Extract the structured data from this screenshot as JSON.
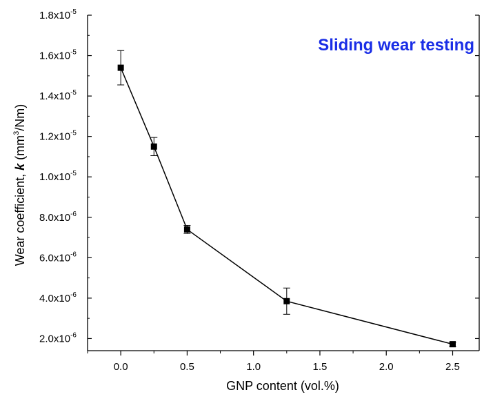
{
  "chart_data": {
    "type": "line",
    "annotation": "Sliding wear testing",
    "xlabel": "GNP content (vol.%)",
    "ylabel_parts": [
      "Wear coefficient, ",
      "k",
      " (mm",
      "3",
      "/Nm)"
    ],
    "xlim": [
      -0.25,
      2.7
    ],
    "ylim": [
      1.4e-06,
      1.8e-05
    ],
    "x_ticks": [
      {
        "value": 0.0,
        "label": "0.0"
      },
      {
        "value": 0.5,
        "label": "0.5"
      },
      {
        "value": 1.0,
        "label": "1.0"
      },
      {
        "value": 1.5,
        "label": "1.5"
      },
      {
        "value": 2.0,
        "label": "2.0"
      },
      {
        "value": 2.5,
        "label": "2.5"
      }
    ],
    "y_ticks": [
      {
        "value": 2e-06,
        "mantissa": "2.0x10",
        "exp": "-6"
      },
      {
        "value": 4e-06,
        "mantissa": "4.0x10",
        "exp": "-6"
      },
      {
        "value": 6e-06,
        "mantissa": "6.0x10",
        "exp": "-6"
      },
      {
        "value": 8e-06,
        "mantissa": "8.0x10",
        "exp": "-6"
      },
      {
        "value": 1e-05,
        "mantissa": "1.0x10",
        "exp": "-5"
      },
      {
        "value": 1.2e-05,
        "mantissa": "1.2x10",
        "exp": "-5"
      },
      {
        "value": 1.4e-05,
        "mantissa": "1.4x10",
        "exp": "-5"
      },
      {
        "value": 1.6e-05,
        "mantissa": "1.6x10",
        "exp": "-5"
      },
      {
        "value": 1.8e-05,
        "mantissa": "1.8x10",
        "exp": "-5"
      }
    ],
    "series": [
      {
        "x": [
          0.0,
          0.25,
          0.5,
          1.25,
          2.5
        ],
        "y": [
          1.54e-05,
          1.15e-05,
          7.4e-06,
          3.85e-06,
          1.72e-06
        ],
        "yerr": [
          8.5e-07,
          4.5e-07,
          2e-07,
          6.5e-07,
          1e-07
        ]
      }
    ],
    "grid": false,
    "colors": {
      "line": "#000000",
      "marker": "#000000",
      "annotation": "#1a2ee6"
    }
  }
}
